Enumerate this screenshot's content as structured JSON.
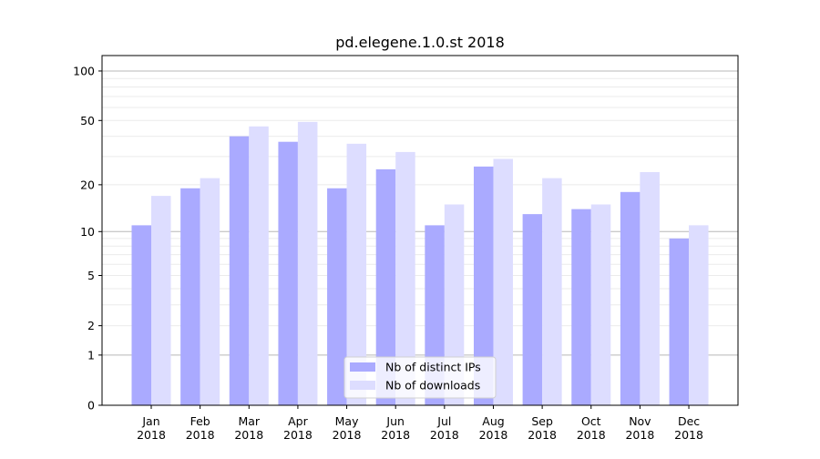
{
  "chart_data": {
    "type": "bar",
    "title": "pd.elegene.1.0.st 2018",
    "xlabel": "",
    "ylabel": "",
    "yscale": "log(1+y)",
    "ylim": [
      0,
      124
    ],
    "yticks": [
      "0",
      "1",
      "2",
      "5",
      "10",
      "20",
      "50",
      "100"
    ],
    "ytick_values": [
      0,
      1,
      2,
      5,
      10,
      20,
      50,
      100
    ],
    "categories": [
      "Jan\n2018",
      "Feb\n2018",
      "Mar\n2018",
      "Apr\n2018",
      "May\n2018",
      "Jun\n2018",
      "Jul\n2018",
      "Aug\n2018",
      "Sep\n2018",
      "Oct\n2018",
      "Nov\n2018",
      "Dec\n2018"
    ],
    "series": [
      {
        "name": "Nb of distinct IPs",
        "color": "#aaaaff",
        "values": [
          11,
          19,
          40,
          37,
          19,
          25,
          11,
          26,
          13,
          14,
          18,
          9
        ]
      },
      {
        "name": "Nb of downloads",
        "color": "#ddddff",
        "values": [
          17,
          22,
          46,
          49,
          36,
          32,
          15,
          29,
          22,
          15,
          24,
          11
        ]
      }
    ],
    "grid": true,
    "legend": "lower-center"
  }
}
